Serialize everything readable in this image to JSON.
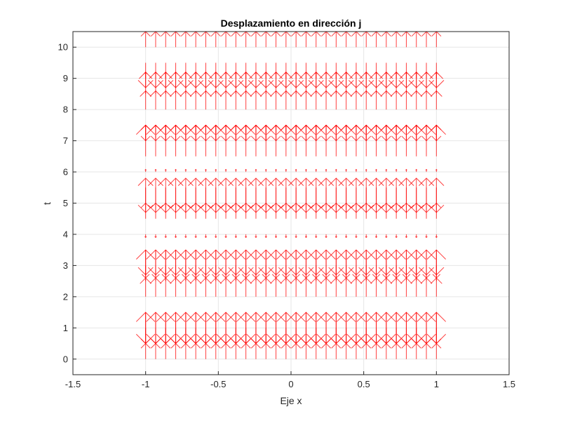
{
  "chart_data": {
    "type": "quiver",
    "title": "Desplazamiento en dirección j",
    "xlabel": "Eje x",
    "ylabel": "t",
    "xlim": [
      -1.5,
      1.5
    ],
    "ylim": [
      -0.5,
      10.5
    ],
    "xticks": [
      -1.5,
      -1,
      -0.5,
      0,
      0.5,
      1,
      1.5
    ],
    "xtick_labels": [
      "-1.5",
      "-1",
      "-0.5",
      "0",
      "0.5",
      "1",
      "1.5"
    ],
    "yticks": [
      0,
      1,
      2,
      3,
      4,
      5,
      6,
      7,
      8,
      9,
      10
    ],
    "ytick_labels": [
      "0",
      "1",
      "2",
      "3",
      "4",
      "5",
      "6",
      "7",
      "8",
      "9",
      "10"
    ],
    "grid": true,
    "color": "#ff0000",
    "x_points": {
      "start": -1,
      "end": 1,
      "count": 30
    },
    "rows": [
      {
        "t": 0,
        "v": 0.5
      },
      {
        "t": 0.5,
        "v": 1.0
      },
      {
        "t": 1,
        "v": -0.5
      },
      {
        "t": 1.5,
        "v": -1.0
      },
      {
        "t": 2,
        "v": 0.6
      },
      {
        "t": 2.5,
        "v": 1.0
      },
      {
        "t": 3,
        "v": -0.4
      },
      {
        "t": 3.5,
        "v": -0.8
      },
      {
        "t": 4,
        "v": -0.1
      },
      {
        "t": 4.5,
        "v": 0.5
      },
      {
        "t": 5,
        "v": 0.8
      },
      {
        "t": 5.5,
        "v": -0.8
      },
      {
        "t": 6,
        "v": 0.08
      },
      {
        "t": 6.5,
        "v": 1.0
      },
      {
        "t": 7,
        "v": 0.5
      },
      {
        "t": 7.5,
        "v": -0.5
      },
      {
        "t": 8,
        "v": 0.6
      },
      {
        "t": 8.5,
        "v": 0.7
      },
      {
        "t": 9,
        "v": 0.2
      },
      {
        "t": 9.5,
        "v": -0.8
      },
      {
        "t": 10,
        "v": 0.5
      }
    ]
  }
}
